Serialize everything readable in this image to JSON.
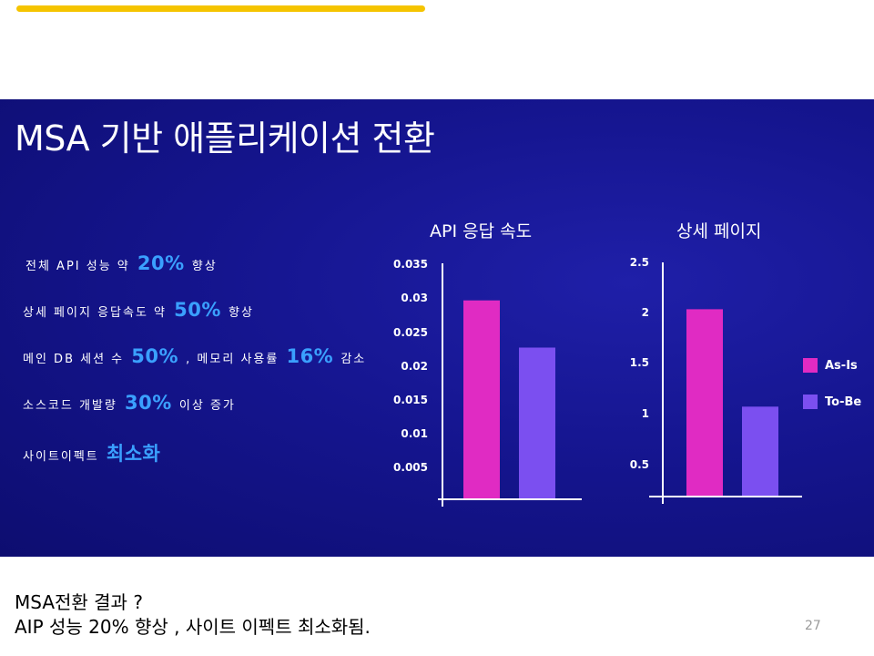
{
  "colors": {
    "accent_bar": "#f5c400",
    "as_is": "#e02bc3",
    "to_be": "#7b4ff0",
    "highlight": "#3aa0ff"
  },
  "slide": {
    "title": "MSA 기반 애플리케이션 전환",
    "bullets": [
      {
        "pre": "전체 API 성능 약 ",
        "hl1": "20%",
        "mid": " 향상",
        "hl2": "",
        "post": ""
      },
      {
        "pre": "상세 페이지 응답속도 약 ",
        "hl1": "50%",
        "mid": " 향상",
        "hl2": "",
        "post": ""
      },
      {
        "pre": "메인 DB 세션 수 ",
        "hl1": "50%",
        "mid": " , 메모리 사용률 ",
        "hl2": "16%",
        "post": " 감소"
      },
      {
        "pre": "소스코드 개발량 ",
        "hl1": "30%",
        "mid": " 이상 증가",
        "hl2": "",
        "post": ""
      },
      {
        "pre": "사이트이펙트 ",
        "hl1": "최소화",
        "mid": "",
        "hl2": "",
        "post": ""
      }
    ],
    "legend": [
      {
        "label": "As-Is",
        "color": "#e02bc3"
      },
      {
        "label": "To-Be",
        "color": "#7b4ff0"
      }
    ]
  },
  "chart_data": [
    {
      "type": "bar",
      "title": "API 응답 속도",
      "categories": [
        "As-Is",
        "To-Be"
      ],
      "values": [
        0.0295,
        0.0225
      ],
      "ticks": [
        "0.005",
        "0.01",
        "0.015",
        "0.02",
        "0.025",
        "0.03",
        "0.035"
      ],
      "ylim": [
        0,
        0.035
      ],
      "grid": false
    },
    {
      "type": "bar",
      "title": "상세 페이지",
      "categories": [
        "As-Is",
        "To-Be"
      ],
      "values": [
        2.0,
        0.96
      ],
      "ticks": [
        "0.5",
        "1",
        "1.5",
        "2",
        "2.5"
      ],
      "ylim": [
        0,
        2.5
      ],
      "grid": false,
      "legend": "right"
    }
  ],
  "notes": {
    "line1": "MSA전환 결과 ?",
    "line2": "AIP 성능 20% 향상 , 사이트 이펙트 최소화됨."
  },
  "page_number": "27"
}
